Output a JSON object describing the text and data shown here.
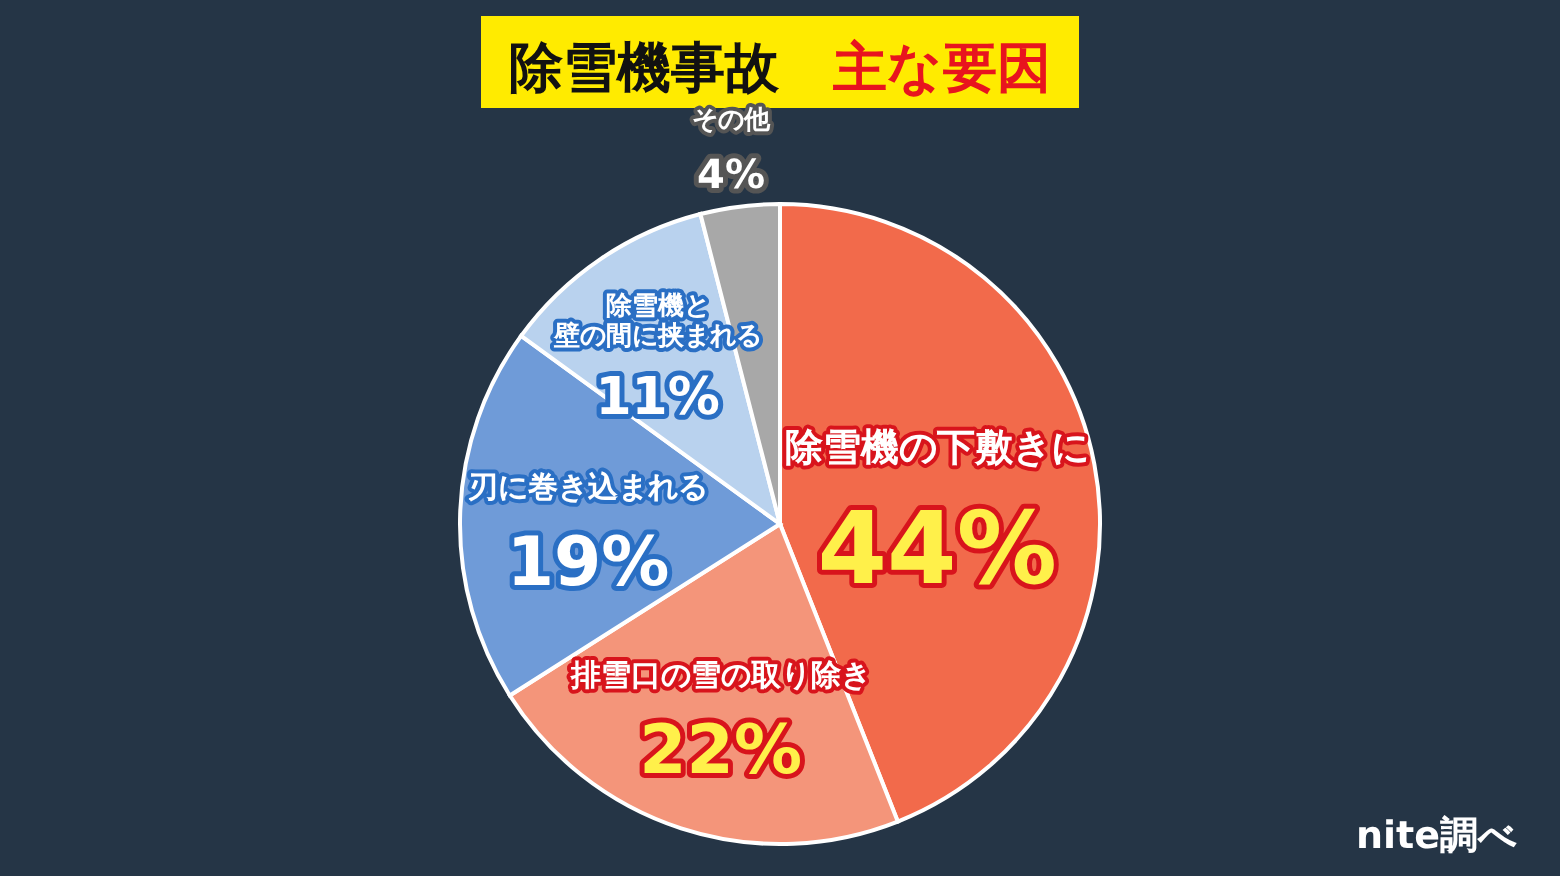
{
  "chart_data": {
    "type": "pie",
    "title": "除雪機事故 主な要因",
    "categories": [
      "除雪機の下敷きに",
      "排雪口の雪の取り除き",
      "刃に巻き込まれる",
      "除雪機と壁の間に挟まれる",
      "その他"
    ],
    "values": [
      44,
      22,
      19,
      11,
      4
    ],
    "colors": [
      "#f26a4b",
      "#f4957a",
      "#6f9bd8",
      "#b9d2ee",
      "#a8a8a8"
    ],
    "value_labels": [
      "44%",
      "22%",
      "19%",
      "11%",
      "4%"
    ],
    "annotations": [
      "nite調べ"
    ]
  }
}
